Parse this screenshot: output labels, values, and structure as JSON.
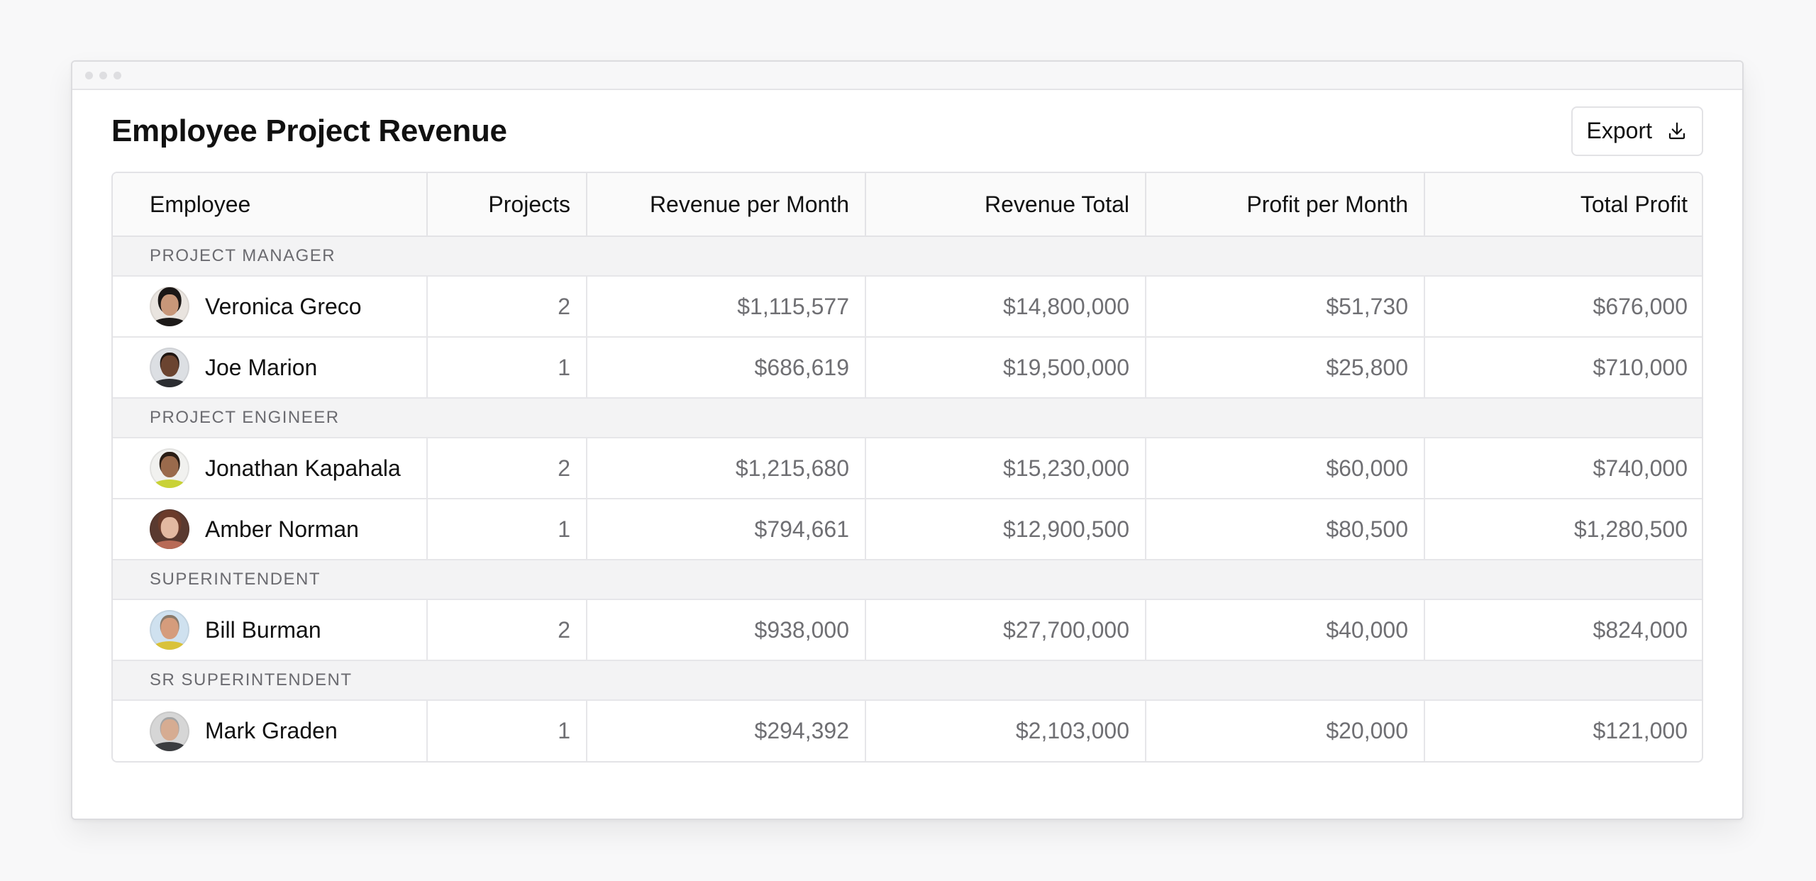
{
  "page": {
    "title": "Employee Project Revenue",
    "export_label": "Export"
  },
  "table": {
    "columns": [
      "Employee",
      "Projects",
      "Revenue per Month",
      "Revenue Total",
      "Profit per Month",
      "Total Profit"
    ],
    "groups": [
      {
        "label": "PROJECT MANAGER",
        "rows": [
          {
            "name": "Veronica Greco",
            "projects": "2",
            "revenue_per_month": "$1,115,577",
            "revenue_total": "$14,800,000",
            "profit_per_month": "$51,730",
            "total_profit": "$676,000"
          },
          {
            "name": "Joe Marion",
            "projects": "1",
            "revenue_per_month": "$686,619",
            "revenue_total": "$19,500,000",
            "profit_per_month": "$25,800",
            "total_profit": "$710,000"
          }
        ]
      },
      {
        "label": "PROJECT ENGINEER",
        "rows": [
          {
            "name": "Jonathan Kapahala",
            "projects": "2",
            "revenue_per_month": "$1,215,680",
            "revenue_total": "$15,230,000",
            "profit_per_month": "$60,000",
            "total_profit": "$740,000"
          },
          {
            "name": "Amber Norman",
            "projects": "1",
            "revenue_per_month": "$794,661",
            "revenue_total": "$12,900,500",
            "profit_per_month": "$80,500",
            "total_profit": "$1,280,500"
          }
        ]
      },
      {
        "label": "SUPERINTENDENT",
        "rows": [
          {
            "name": "Bill Burman",
            "projects": "2",
            "revenue_per_month": "$938,000",
            "revenue_total": "$27,700,000",
            "profit_per_month": "$40,000",
            "total_profit": "$824,000"
          }
        ]
      },
      {
        "label": "SR SUPERINTENDENT",
        "rows": [
          {
            "name": "Mark Graden",
            "projects": "1",
            "revenue_per_month": "$294,392",
            "revenue_total": "$2,103,000",
            "profit_per_month": "$20,000",
            "total_profit": "$121,000"
          }
        ]
      }
    ]
  },
  "icons": {
    "export": "download-icon",
    "window_controls": [
      "window-dot-icon",
      "window-dot-icon",
      "window-dot-icon"
    ]
  },
  "colors": {
    "background": "#f8f8f9",
    "group_row": "#f3f3f4",
    "border": "#e3e3e6",
    "value_text": "#6f6f73"
  }
}
